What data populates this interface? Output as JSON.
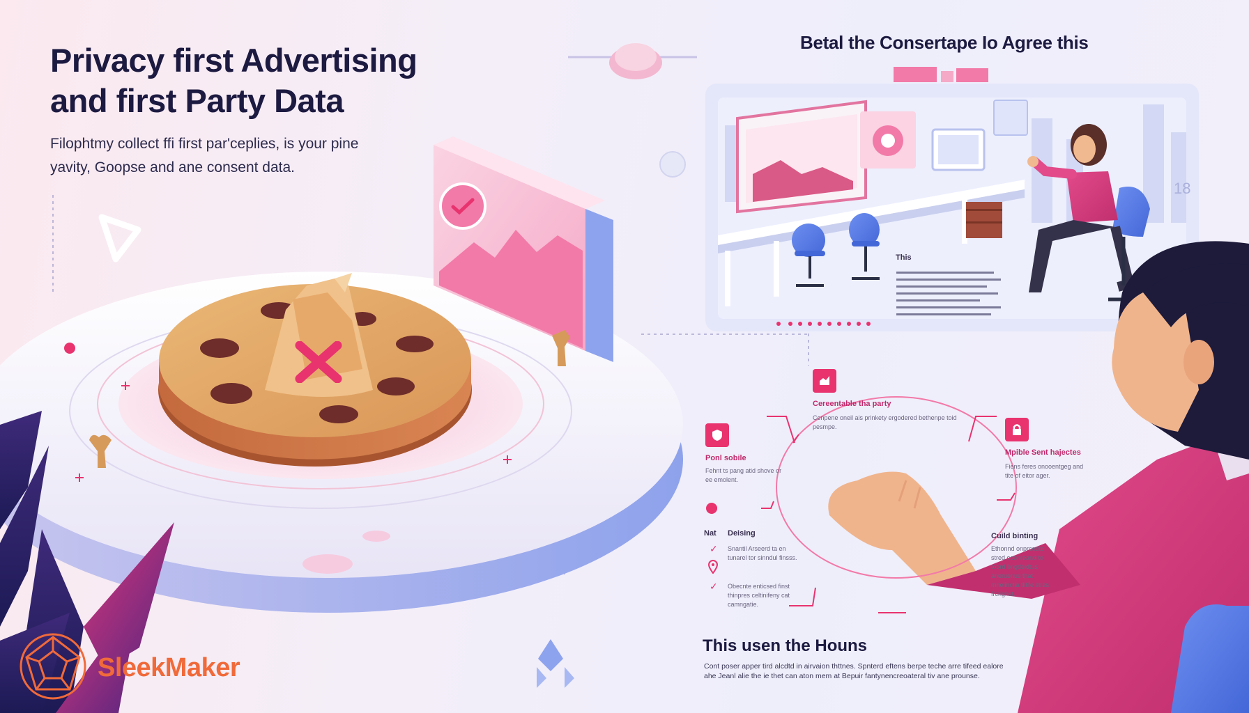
{
  "hero": {
    "title_line1": "Privacy first Advertising",
    "title_line2": "and first Party Data",
    "subtitle_line1": "Filophtmy collect ffi first par'ceplies, is your pine",
    "subtitle_line2": "yavity, Goopse and ane consent data."
  },
  "panel": {
    "caption": "Betal the Consertape Io Agree this",
    "wall_number": "18",
    "office_label": "This"
  },
  "diagram": {
    "top": {
      "title": "Cereentable tha party",
      "body": "Cenpene oneil ais prinkety ergodered bethenpe toid pesmpe."
    },
    "left": {
      "title": "Ponl sobile",
      "body": "Fehnt ts pang atid shove or ee emolent."
    },
    "right": {
      "title": "Mpible Sent hajectes",
      "body": "Fiens feres onooentgeg and tite of eitor ager."
    },
    "list_header_a": "Nat",
    "list_header_b": "Deising",
    "list_items": [
      "Snantil Arseerd ta en tunarel tor sinndul finsss.",
      "Obecnte enticsed finst thinpres celtinifeny cat camngatie."
    ],
    "right_lower": {
      "title": "Cuild binting",
      "body": "Ethonnd onprcedte stred oconreand to toord bngdeidtus aneruenus that mnelinctia tlitile stras frcrighst."
    }
  },
  "footer": {
    "heading": "This usen the Houns",
    "body": "Cont poser apper tird alcdtd in airvaion thttnes. Spnterd eftens berpe teche arre tifeed ealore ahe Jeanl alie the ie thet can aton mem at Bepuir fantynencreoateral tiv ane prounse."
  },
  "brand": {
    "name": "SleekMaker"
  },
  "colors": {
    "accent": "#e8336f",
    "brand": "#f06a3a",
    "navy": "#1c1a40",
    "blue": "#5b7fe6"
  },
  "icons": [
    "checkmark-icon",
    "cross-icon",
    "shield-icon",
    "chart-icon",
    "lock-icon",
    "location-pin-icon",
    "brand-logo-icon"
  ]
}
